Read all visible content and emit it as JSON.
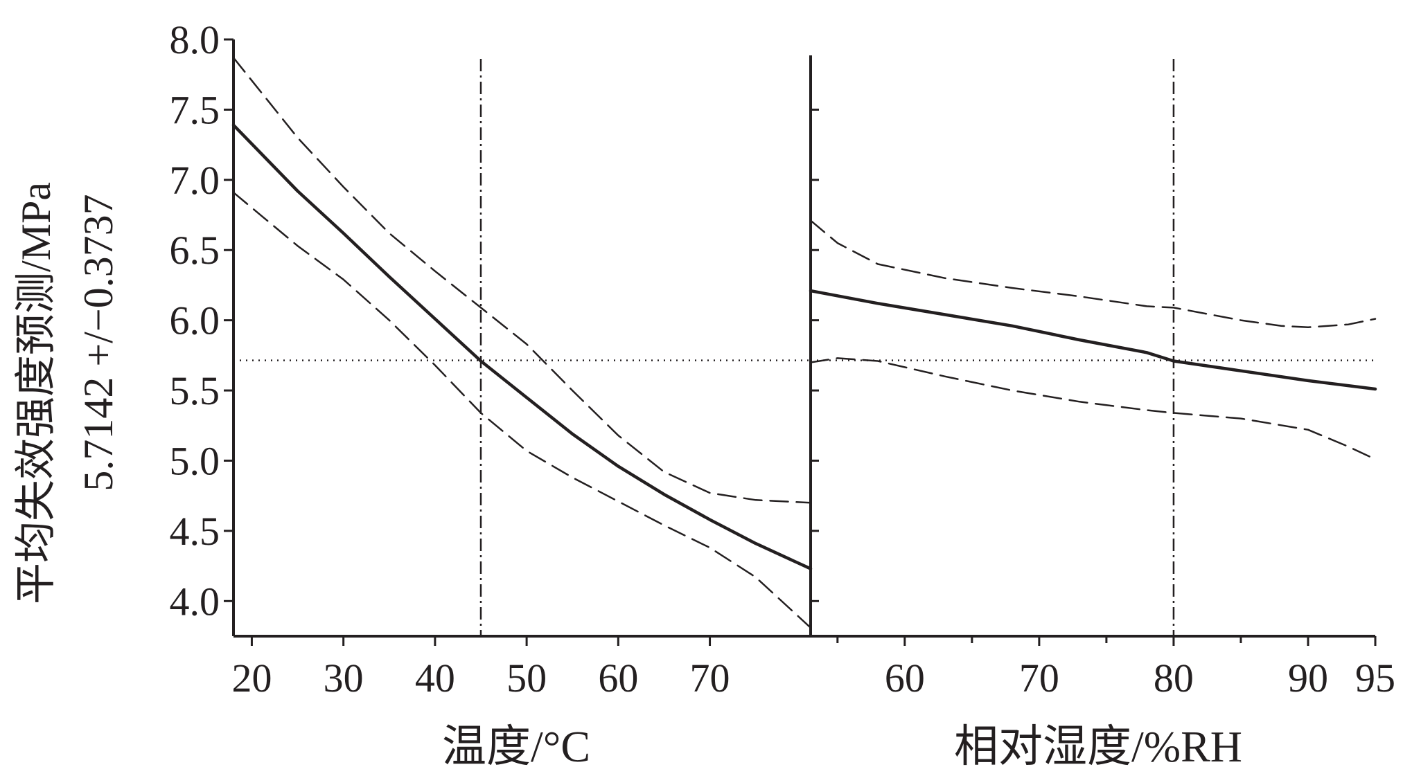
{
  "chart_data": [
    {
      "type": "line",
      "panel": "temperature",
      "xlabel": "温度/°C",
      "xlim": [
        18,
        81
      ],
      "ylim": [
        3.75,
        8.0
      ],
      "x_ticks": [
        20,
        30,
        40,
        50,
        60,
        70
      ],
      "x_minor_ticks": [],
      "reference_x": 45,
      "series": [
        {
          "style": "solid",
          "x": [
            18,
            25,
            30,
            35,
            40,
            45,
            50,
            55,
            60,
            65,
            70,
            75,
            81
          ],
          "y": [
            7.39,
            6.92,
            6.62,
            6.31,
            6.01,
            5.71,
            5.45,
            5.19,
            4.96,
            4.76,
            4.58,
            4.41,
            4.23
          ]
        },
        {
          "style": "dashed",
          "x": [
            18,
            25,
            30,
            35,
            40,
            45,
            50,
            55,
            60,
            65,
            70,
            75,
            81
          ],
          "y": [
            7.87,
            7.3,
            6.95,
            6.62,
            6.35,
            6.09,
            5.83,
            5.5,
            5.18,
            4.92,
            4.77,
            4.72,
            4.7
          ]
        },
        {
          "style": "dashed",
          "x": [
            18,
            25,
            30,
            35,
            40,
            45,
            50,
            55,
            60,
            65,
            70,
            75,
            81
          ],
          "y": [
            6.91,
            6.53,
            6.29,
            6.0,
            5.68,
            5.34,
            5.07,
            4.88,
            4.71,
            4.54,
            4.38,
            4.17,
            3.81
          ]
        }
      ]
    },
    {
      "type": "line",
      "panel": "relative-humidity",
      "xlabel": "相对湿度/%RH",
      "xlim": [
        53,
        95
      ],
      "ylim": [
        3.75,
        8.0
      ],
      "x_ticks": [
        60,
        70,
        80,
        90,
        95
      ],
      "x_minor_ticks": [
        55,
        65,
        75,
        85
      ],
      "reference_x": 80,
      "series": [
        {
          "style": "solid",
          "x": [
            53,
            58,
            63,
            68,
            73,
            78,
            80,
            85,
            90,
            95
          ],
          "y": [
            6.21,
            6.12,
            6.04,
            5.96,
            5.86,
            5.77,
            5.71,
            5.64,
            5.57,
            5.51
          ]
        },
        {
          "style": "dashed",
          "x": [
            53,
            55,
            58,
            63,
            68,
            73,
            78,
            80,
            85,
            88,
            90,
            93,
            95
          ],
          "y": [
            6.71,
            6.55,
            6.4,
            6.3,
            6.23,
            6.17,
            6.1,
            6.09,
            6.0,
            5.96,
            5.95,
            5.97,
            6.01
          ]
        },
        {
          "style": "dashed",
          "x": [
            53,
            55,
            58,
            63,
            68,
            73,
            78,
            80,
            85,
            90,
            93,
            95
          ],
          "y": [
            5.7,
            5.73,
            5.71,
            5.6,
            5.5,
            5.42,
            5.36,
            5.34,
            5.3,
            5.22,
            5.1,
            5.01
          ]
        }
      ]
    }
  ],
  "shared": {
    "ylabel_line1": "平均失效强度预测/MPa",
    "ylabel_line2": "5.7142 +/−0.3737",
    "y_ticks": [
      4.0,
      4.5,
      5.0,
      5.5,
      6.0,
      6.5,
      7.0,
      7.5,
      8.0
    ],
    "reference_y": 5.7142,
    "grid": false,
    "line_color": "#231f20"
  }
}
